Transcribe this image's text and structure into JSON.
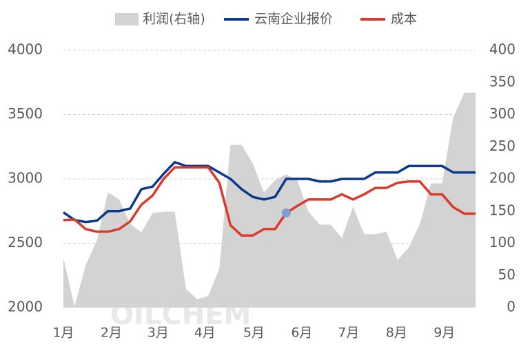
{
  "chart_data": {
    "type": "line",
    "watermark": "OILCHEM",
    "xlim": [
      0,
      37
    ],
    "xticks": [
      {
        "value": 0,
        "label": "1月"
      },
      {
        "value": 4.3,
        "label": "2月"
      },
      {
        "value": 8.5,
        "label": "3月"
      },
      {
        "value": 12.7,
        "label": "4月"
      },
      {
        "value": 17.1,
        "label": "5月"
      },
      {
        "value": 21.4,
        "label": "6月"
      },
      {
        "value": 25.6,
        "label": "7月"
      },
      {
        "value": 29.9,
        "label": "8月"
      },
      {
        "value": 34.2,
        "label": "9月"
      }
    ],
    "ylim": [
      2000,
      4000
    ],
    "yticks": [
      2000,
      2500,
      3000,
      3500,
      4000
    ],
    "y2lim": [
      0,
      400
    ],
    "y2ticks": [
      0,
      50,
      100,
      150,
      200,
      250,
      300,
      350,
      400
    ],
    "grid": true,
    "legend": "top",
    "series": [
      {
        "name": "利润(右轴)",
        "type": "area",
        "axis": "y2",
        "color": "#d3d3d3",
        "values": [
          77,
          2,
          66,
          104,
          179,
          168,
          130,
          117,
          147,
          149,
          149,
          29,
          13,
          18,
          61,
          253,
          253,
          224,
          179,
          198,
          207,
          198,
          149,
          129,
          129,
          108,
          157,
          114,
          114,
          118,
          74,
          93,
          130,
          193,
          193,
          296,
          334,
          334
        ]
      },
      {
        "name": "云南企业报价",
        "type": "line",
        "color": "#0b3a8c",
        "values": [
          2740,
          2680,
          2665,
          2675,
          2750,
          2750,
          2770,
          2920,
          2940,
          3040,
          3130,
          3100,
          3100,
          3100,
          3050,
          3000,
          2920,
          2860,
          2840,
          2860,
          3000,
          3000,
          3000,
          2980,
          2980,
          3000,
          3000,
          3000,
          3050,
          3050,
          3050,
          3100,
          3100,
          3100,
          3100,
          3050,
          3050,
          3050
        ]
      },
      {
        "name": "成本",
        "type": "line",
        "color": "#d93a2b",
        "highlight": 20,
        "highlight_color": "#7b9fd6",
        "values": [
          2680,
          2685,
          2610,
          2590,
          2590,
          2610,
          2670,
          2800,
          2870,
          3000,
          3090,
          3090,
          3090,
          3090,
          2970,
          2640,
          2560,
          2560,
          2610,
          2610,
          2735,
          2790,
          2840,
          2840,
          2840,
          2880,
          2840,
          2880,
          2930,
          2930,
          2970,
          2980,
          2980,
          2880,
          2880,
          2780,
          2730,
          2730
        ]
      }
    ]
  }
}
